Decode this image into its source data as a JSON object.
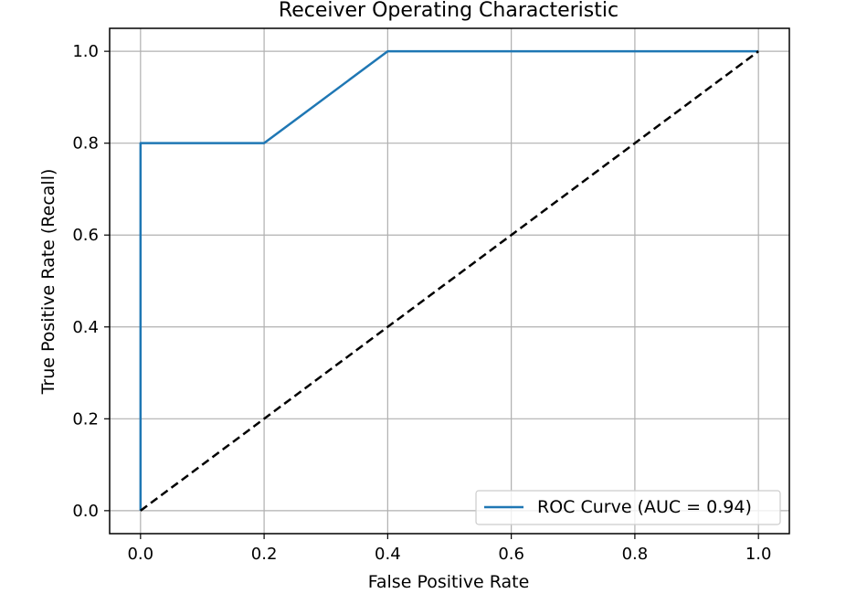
{
  "chart_data": {
    "type": "line",
    "title": "Receiver Operating Characteristic",
    "xlabel": "False Positive Rate",
    "ylabel": "True Positive Rate (Recall)",
    "xlim": [
      -0.05,
      1.05
    ],
    "ylim": [
      -0.05,
      1.05
    ],
    "xticks": [
      0.0,
      0.2,
      0.4,
      0.6,
      0.8,
      1.0
    ],
    "yticks": [
      0.0,
      0.2,
      0.4,
      0.6,
      0.8,
      1.0
    ],
    "xtick_labels": [
      "0.0",
      "0.2",
      "0.4",
      "0.6",
      "0.8",
      "1.0"
    ],
    "ytick_labels": [
      "0.0",
      "0.2",
      "0.4",
      "0.6",
      "0.8",
      "1.0"
    ],
    "grid": true,
    "legend_position": "lower-right",
    "series": [
      {
        "name": "ROC Curve (AUC = 0.94)",
        "color": "#1f77b4",
        "style": "solid",
        "x": [
          0.0,
          0.0,
          0.2,
          0.4,
          1.0
        ],
        "y": [
          0.0,
          0.8,
          0.8,
          1.0,
          1.0
        ]
      },
      {
        "color": "#000000",
        "style": "dashed",
        "x": [
          0.0,
          1.0
        ],
        "y": [
          0.0,
          1.0
        ]
      }
    ]
  }
}
